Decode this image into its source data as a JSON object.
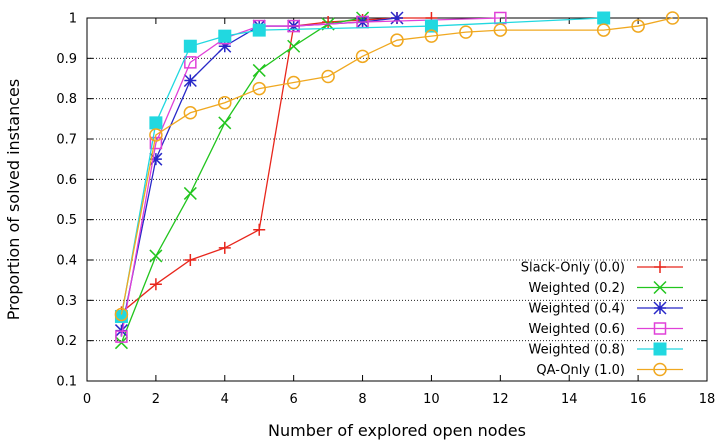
{
  "chart_data": {
    "type": "line",
    "title": "",
    "xlabel": "Number of explored open nodes",
    "ylabel": "Proportion of solved instances",
    "xlim": [
      0,
      18
    ],
    "ylim": [
      0.1,
      1
    ],
    "xticks": [
      0,
      2,
      4,
      6,
      8,
      10,
      12,
      14,
      16,
      18
    ],
    "xtick_labels": [
      "0",
      "2",
      "4",
      "6",
      "8",
      "10",
      "12",
      "14",
      "16",
      "18"
    ],
    "yticks": [
      0.1,
      0.2,
      0.3,
      0.4,
      0.5,
      0.6,
      0.7,
      0.8,
      0.9,
      1
    ],
    "ytick_labels": [
      "0.1",
      "0.2",
      "0.3",
      "0.4",
      "0.5",
      "0.6",
      "0.7",
      "0.8",
      "0.9",
      "1"
    ],
    "grid": "horizontal-dotted",
    "legend_position": "bottom-right",
    "series": [
      {
        "name": "Slack-Only (0.0)",
        "color": "#e8261c",
        "marker": "plus",
        "x": [
          1,
          2,
          3,
          4,
          5,
          6,
          7,
          8,
          9,
          10
        ],
        "y": [
          0.27,
          0.34,
          0.4,
          0.43,
          0.475,
          0.98,
          0.99,
          0.995,
          1.0,
          1.0
        ]
      },
      {
        "name": "Weighted (0.2)",
        "color": "#22c51e",
        "marker": "x",
        "x": [
          1,
          2,
          3,
          4,
          5,
          6,
          7,
          8
        ],
        "y": [
          0.195,
          0.41,
          0.565,
          0.74,
          0.87,
          0.93,
          0.985,
          1.0
        ]
      },
      {
        "name": "Weighted (0.4)",
        "color": "#2828c8",
        "marker": "star",
        "x": [
          1,
          2,
          3,
          4,
          5,
          6,
          8,
          9
        ],
        "y": [
          0.225,
          0.65,
          0.845,
          0.93,
          0.98,
          0.98,
          0.99,
          1.0
        ]
      },
      {
        "name": "Weighted (0.6)",
        "color": "#e040d8",
        "marker": "square-open",
        "x": [
          1,
          2,
          3,
          4,
          5,
          6,
          8,
          12
        ],
        "y": [
          0.21,
          0.69,
          0.89,
          0.95,
          0.98,
          0.98,
          0.99,
          1.0
        ]
      },
      {
        "name": "Weighted (0.8)",
        "color": "#21d8e0",
        "marker": "square-filled",
        "x": [
          1,
          2,
          3,
          4,
          5,
          10,
          15
        ],
        "y": [
          0.26,
          0.74,
          0.93,
          0.955,
          0.97,
          0.98,
          1.0
        ]
      },
      {
        "name": "QA-Only (1.0)",
        "color": "#f0a820",
        "marker": "circle-open",
        "x": [
          1,
          2,
          3,
          4,
          5,
          6,
          7,
          8,
          9,
          10,
          11,
          12,
          15,
          16,
          17
        ],
        "y": [
          0.265,
          0.71,
          0.765,
          0.79,
          0.825,
          0.84,
          0.855,
          0.905,
          0.945,
          0.955,
          0.965,
          0.97,
          0.97,
          0.98,
          1.0
        ]
      }
    ]
  }
}
